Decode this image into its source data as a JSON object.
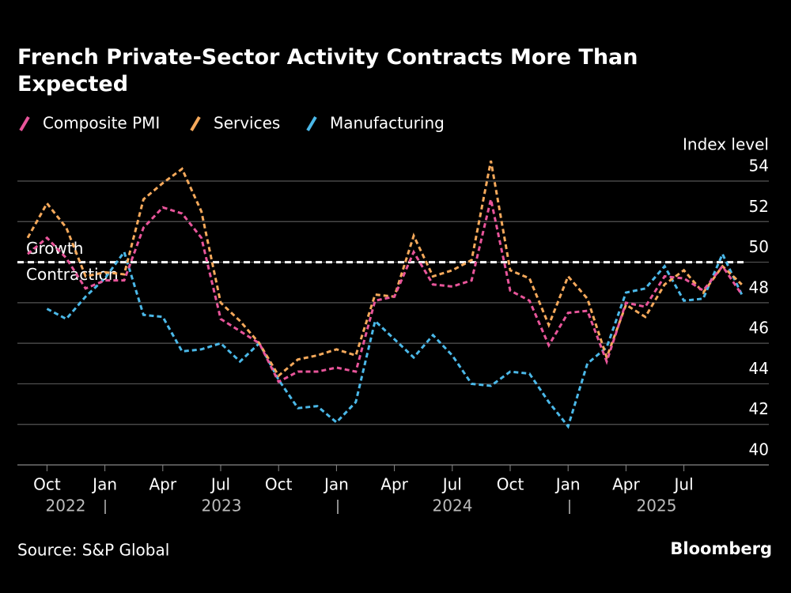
{
  "chart_data": {
    "type": "line",
    "title": "French Private-Sector Activity Contracts More Than Expected",
    "y_axis_label": "Index level",
    "source": "Source: S&P Global",
    "brand": "Bloomberg",
    "categories": [
      null,
      "Oct",
      null,
      null,
      "Jan",
      null,
      null,
      "Apr",
      null,
      null,
      "Jul",
      null,
      null,
      "Oct",
      null,
      null,
      "Jan",
      null,
      null,
      "Apr",
      null,
      null,
      "Jul",
      null,
      null,
      "Oct",
      null,
      null,
      "Jan",
      null,
      null,
      "Apr",
      null,
      null,
      "Jul",
      null,
      null,
      null
    ],
    "years": [
      "2022",
      "2023",
      "2024",
      "2025"
    ],
    "series": [
      {
        "name": "Composite PMI",
        "color": "#e8559a",
        "values": [
          50.4,
          51.2,
          50.2,
          48.7,
          49.1,
          49.1,
          51.7,
          52.7,
          52.4,
          51.2,
          47.2,
          46.6,
          46.0,
          44.1,
          44.6,
          44.6,
          44.8,
          44.6,
          48.1,
          48.3,
          50.5,
          48.9,
          48.8,
          49.1,
          53.1,
          48.6,
          48.1,
          45.9,
          47.5,
          47.6,
          45.1,
          48.0,
          47.8,
          49.3,
          49.2,
          48.6,
          49.8,
          48.4
        ]
      },
      {
        "name": "Services",
        "color": "#f5a95b",
        "values": [
          51.2,
          52.9,
          51.7,
          49.3,
          49.5,
          49.4,
          53.1,
          53.9,
          54.6,
          52.5,
          48.0,
          47.1,
          46.0,
          44.4,
          45.2,
          45.4,
          45.7,
          45.4,
          48.4,
          48.3,
          51.3,
          49.3,
          49.6,
          50.1,
          55.0,
          49.6,
          49.2,
          46.9,
          49.3,
          48.2,
          45.3,
          47.9,
          47.3,
          48.9,
          49.6,
          48.5,
          49.8,
          48.9
        ]
      },
      {
        "name": "Manufacturing",
        "color": "#4bb8e8",
        "values": [
          null,
          47.7,
          47.2,
          48.3,
          49.2,
          50.5,
          47.4,
          47.3,
          45.6,
          45.7,
          46.0,
          45.1,
          46.0,
          44.2,
          42.8,
          42.9,
          42.1,
          43.1,
          47.1,
          46.2,
          45.3,
          46.4,
          45.4,
          44.0,
          43.9,
          44.6,
          44.5,
          43.1,
          41.9,
          45.0,
          45.8,
          48.5,
          48.7,
          49.8,
          48.1,
          48.2,
          50.4,
          48.4
        ]
      }
    ],
    "reference_line": {
      "value": 50,
      "labels": [
        "Growth",
        "Contraction"
      ]
    },
    "ylim": [
      40,
      54
    ],
    "yticks": [
      40,
      42,
      44,
      46,
      48,
      50,
      52,
      54
    ],
    "grid": true,
    "legend": "top-left"
  }
}
